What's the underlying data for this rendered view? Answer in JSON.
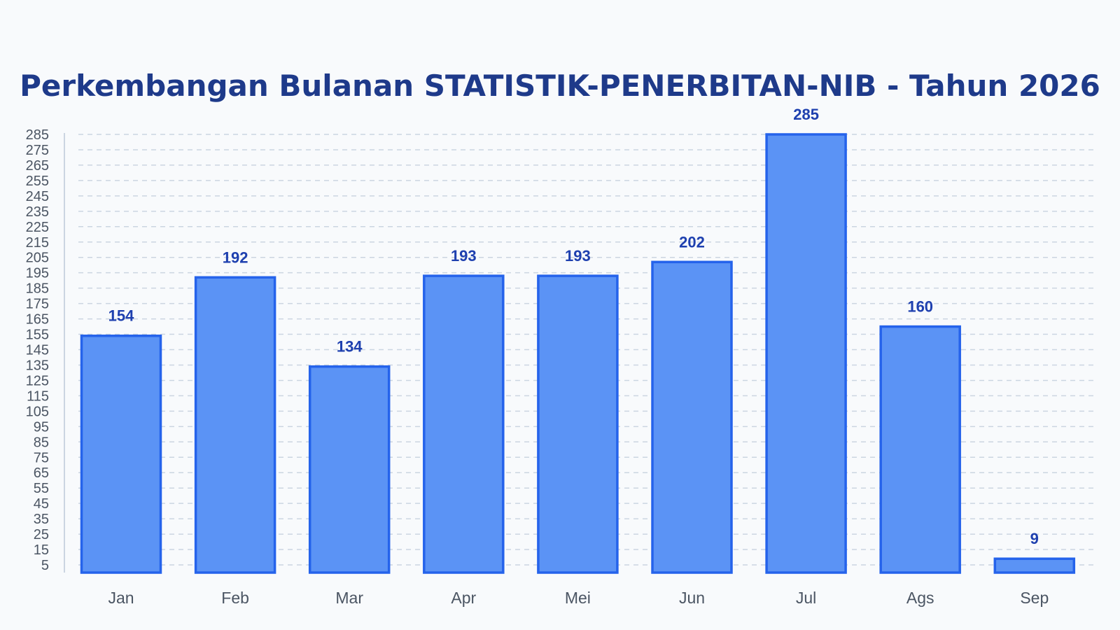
{
  "chart_data": {
    "type": "bar",
    "title": "Perkembangan Bulanan STATISTIK-PENERBITAN-NIB - Tahun 2026",
    "categories": [
      "Jan",
      "Feb",
      "Mar",
      "Apr",
      "Mei",
      "Jun",
      "Jul",
      "Ags",
      "Sep"
    ],
    "values": [
      154,
      192,
      134,
      193,
      193,
      202,
      285,
      160,
      9
    ],
    "yticks": [
      5,
      15,
      25,
      35,
      45,
      55,
      65,
      75,
      85,
      95,
      105,
      115,
      125,
      135,
      145,
      155,
      165,
      175,
      185,
      195,
      205,
      215,
      225,
      235,
      245,
      255,
      265,
      275,
      285
    ],
    "ylim": [
      0,
      285
    ],
    "grid": true,
    "data_labels": true,
    "colors": {
      "bar_fill": "#5b93f5",
      "bar_stroke": "#2563eb",
      "label": "#1e40af",
      "title": "#1e3a8a",
      "tick_text": "#4b5563",
      "grid": "#cbd5e1",
      "axis": "#cbd5e1",
      "background": "#f8fafc"
    }
  }
}
